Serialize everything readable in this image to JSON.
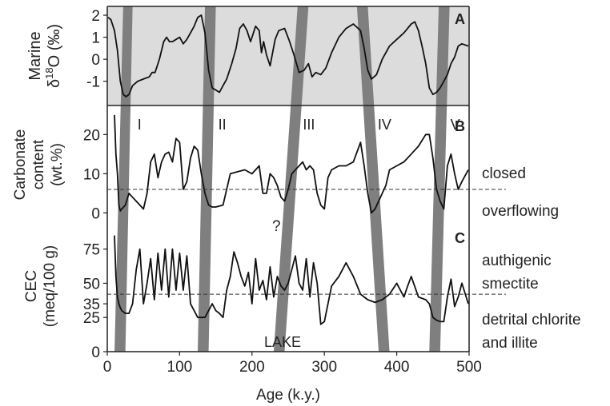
{
  "chart_data": {
    "type": "line",
    "xlabel": "Age (k.y.)",
    "xlim": [
      0,
      500
    ],
    "x_ticks": [
      "0",
      "100",
      "200",
      "300",
      "400",
      "500"
    ],
    "shaded_bands": [
      {
        "label": "I",
        "x_top": [
          22,
          35
        ],
        "x_bottom": [
          10,
          25
        ]
      },
      {
        "label": "II",
        "x_top": [
          135,
          150
        ],
        "x_bottom": [
          125,
          140
        ]
      },
      {
        "label": "III",
        "x_top": [
          263,
          278
        ],
        "x_bottom": [
          230,
          245
        ]
      },
      {
        "label": "IV",
        "x_top": [
          345,
          360
        ],
        "x_bottom": [
          375,
          390
        ]
      },
      {
        "label": "V",
        "x_top": [
          458,
          473
        ],
        "x_bottom": [
          445,
          460
        ]
      }
    ],
    "panels": [
      {
        "letter": "A",
        "ylabel_line1": "Marine",
        "ylabel_line2_prefix": "δ",
        "ylabel_line2_sup": "18",
        "ylabel_line2_suffix": "O (‰)",
        "ylim": [
          -2.1,
          2.4
        ],
        "y_ticks": [
          "2",
          "1",
          "0",
          "-1"
        ],
        "y_tick_values": [
          2,
          1,
          0,
          -1
        ],
        "background": "#dcdcdc",
        "x": [
          0,
          5,
          10,
          14,
          18,
          22,
          26,
          30,
          35,
          42,
          50,
          58,
          62,
          66,
          72,
          78,
          82,
          86,
          90,
          95,
          100,
          105,
          110,
          115,
          120,
          125,
          130,
          135,
          140,
          145,
          150,
          155,
          160,
          165,
          172,
          178,
          183,
          188,
          193,
          198,
          205,
          210,
          213,
          216,
          220,
          225,
          232,
          237,
          245,
          252,
          258,
          265,
          272,
          278,
          283,
          288,
          295,
          302,
          310,
          320,
          330,
          340,
          350,
          355,
          360,
          365,
          372,
          380,
          390,
          400,
          410,
          420,
          425,
          430,
          435,
          440,
          445,
          450,
          455,
          460,
          465,
          470,
          475,
          480,
          485,
          490,
          500
        ],
        "y": [
          1.9,
          1.8,
          1.3,
          0.4,
          -1.0,
          -1.6,
          -1.7,
          -1.6,
          -1.2,
          -1.0,
          -0.9,
          -0.8,
          -0.6,
          -0.6,
          0.0,
          0.8,
          1.0,
          0.8,
          0.8,
          0.9,
          1.0,
          0.7,
          0.9,
          1.2,
          1.5,
          1.9,
          2.0,
          1.2,
          -0.5,
          -1.3,
          -1.4,
          -1.5,
          -1.2,
          -0.9,
          -0.2,
          0.5,
          1.4,
          1.6,
          1.3,
          0.8,
          1.5,
          1.3,
          0.3,
          0.8,
          0.2,
          -0.3,
          0.9,
          1.3,
          1.4,
          0.8,
          0.2,
          -0.6,
          -0.5,
          -0.2,
          -0.8,
          -0.6,
          -0.7,
          -0.4,
          0.3,
          1.0,
          1.4,
          1.6,
          1.3,
          0.5,
          -0.5,
          -0.9,
          -0.7,
          0.0,
          0.6,
          0.9,
          1.2,
          1.6,
          1.7,
          1.3,
          0.6,
          -0.2,
          -1.3,
          -1.6,
          -1.5,
          -1.3,
          -1.0,
          -0.7,
          -0.2,
          0.1,
          0.6,
          0.7,
          0.6
        ]
      },
      {
        "letter": "B",
        "ylabel_line1": "Carbonate",
        "ylabel_line2": "content",
        "ylabel_line3": "(wt.%)",
        "ylim": [
          -4,
          27
        ],
        "y_ticks": [
          "20",
          "10",
          "0"
        ],
        "y_tick_values": [
          20,
          10,
          0
        ],
        "threshold": 6,
        "threshold_label_above": "closed",
        "threshold_label_below": "overflowing",
        "x": [
          10,
          12,
          14,
          16,
          18,
          20,
          25,
          30,
          35,
          40,
          45,
          50,
          55,
          60,
          65,
          70,
          75,
          80,
          85,
          90,
          95,
          100,
          105,
          110,
          115,
          120,
          125,
          130,
          135,
          140,
          145,
          150,
          160,
          170,
          180,
          190,
          200,
          205,
          210,
          215,
          220,
          225,
          230,
          235,
          240,
          245,
          250,
          255,
          260,
          265,
          270,
          275,
          280,
          285,
          290,
          295,
          300,
          305,
          310,
          320,
          330,
          340,
          350,
          355,
          360,
          365,
          370,
          375,
          380,
          385,
          390,
          400,
          410,
          420,
          430,
          440,
          445,
          450,
          455,
          460,
          465,
          470,
          475,
          480,
          485,
          490,
          500
        ],
        "y": [
          25,
          15,
          10,
          2,
          0.5,
          1,
          2,
          5,
          4,
          3,
          2,
          1,
          5,
          13,
          15,
          9,
          13,
          15,
          15.5,
          13,
          19,
          18,
          6,
          8,
          14,
          17,
          16,
          10,
          5,
          2,
          1.5,
          1.5,
          2,
          10,
          10.5,
          11,
          10,
          11,
          12,
          5,
          5,
          10,
          9,
          7,
          4,
          3,
          6,
          10,
          11,
          12,
          13,
          11,
          12,
          11,
          5,
          2,
          1,
          9,
          11,
          12,
          12,
          13,
          18,
          12,
          5,
          0,
          1,
          3,
          5,
          7,
          11,
          12,
          13,
          15,
          17,
          20,
          20,
          14,
          6,
          3,
          1,
          12,
          15,
          10,
          6,
          8,
          11
        ]
      },
      {
        "letter": "C",
        "ylabel_line1": "CEC",
        "ylabel_line2": "(meq/100 g)",
        "ylim": [
          0,
          90
        ],
        "y_ticks": [
          "75",
          "50",
          "35",
          "25",
          "0"
        ],
        "y_tick_values": [
          75,
          50,
          35,
          25,
          0
        ],
        "threshold": 42,
        "threshold_label_above_1": "authigenic",
        "threshold_label_above_2": "smectite",
        "threshold_label_below_1": "detrital chlorite",
        "threshold_label_below_2": "and illite",
        "x": [
          10,
          12,
          14,
          16,
          18,
          20,
          25,
          30,
          35,
          40,
          45,
          50,
          55,
          60,
          65,
          70,
          75,
          80,
          85,
          90,
          95,
          100,
          105,
          110,
          115,
          120,
          125,
          130,
          135,
          140,
          145,
          150,
          155,
          160,
          165,
          170,
          175,
          180,
          185,
          190,
          195,
          200,
          205,
          210,
          215,
          220,
          225,
          230,
          235,
          240,
          245,
          250,
          255,
          260,
          265,
          270,
          275,
          280,
          285,
          290,
          295,
          300,
          310,
          320,
          330,
          340,
          350,
          360,
          370,
          380,
          390,
          400,
          410,
          415,
          420,
          430,
          440,
          445,
          450,
          455,
          460,
          465,
          470,
          475,
          480,
          485,
          490,
          500
        ],
        "y": [
          85,
          55,
          40,
          35,
          32,
          30,
          28,
          28,
          35,
          60,
          75,
          35,
          50,
          68,
          38,
          72,
          45,
          75,
          40,
          75,
          45,
          72,
          45,
          70,
          35,
          30,
          25,
          25,
          25,
          30,
          35,
          30,
          28,
          25,
          45,
          55,
          73,
          65,
          55,
          48,
          58,
          35,
          68,
          45,
          52,
          38,
          62,
          40,
          55,
          48,
          45,
          50,
          60,
          70,
          50,
          45,
          68,
          40,
          65,
          50,
          20,
          22,
          48,
          55,
          65,
          55,
          42,
          38,
          36,
          38,
          42,
          50,
          40,
          48,
          55,
          40,
          38,
          35,
          25,
          23,
          22,
          22,
          40,
          53,
          33,
          40,
          50,
          35
        ]
      }
    ],
    "annotations": [
      "?",
      "LAKE"
    ]
  }
}
